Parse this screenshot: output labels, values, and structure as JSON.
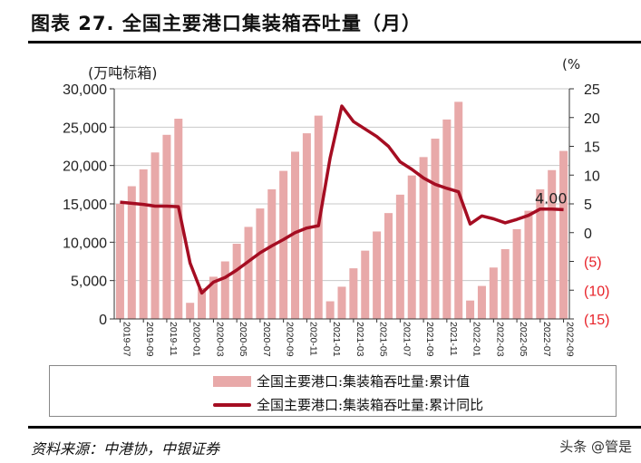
{
  "title": "图表 27. 全国主要港口集装箱吞吐量（月）",
  "source": "资料来源：中港协，中银证券",
  "watermark": "头条 @管是",
  "chart_data": {
    "type": "bar+line",
    "title": "",
    "left_axis_label": "(万吨标箱)",
    "right_axis_label": "(%",
    "left_ylim": [
      0,
      30000
    ],
    "left_ticks": [
      "0",
      "5,000",
      "10,000",
      "15,000",
      "20,000",
      "25,000",
      "30,000"
    ],
    "right_ylim": [
      -15,
      25
    ],
    "right_ticks": [
      "(15)",
      "(10)",
      "(5)",
      "0",
      "5",
      "10",
      "15",
      "20",
      "25"
    ],
    "negative_tick_color": "#e8232a",
    "grid": true,
    "categories": [
      "2019-07",
      "2019-08",
      "2019-09",
      "2019-10",
      "2019-11",
      "2019-12",
      "2020-01",
      "2020-02",
      "2020-03",
      "2020-04",
      "2020-05",
      "2020-06",
      "2020-07",
      "2020-08",
      "2020-09",
      "2020-10",
      "2020-11",
      "2020-12",
      "2021-01",
      "2021-02",
      "2021-03",
      "2021-04",
      "2021-05",
      "2021-06",
      "2021-07",
      "2021-08",
      "2021-09",
      "2021-10",
      "2021-11",
      "2021-12",
      "2022-01",
      "2022-02",
      "2022-03",
      "2022-04",
      "2022-05",
      "2022-06",
      "2022-07",
      "2022-08",
      "2022-09"
    ],
    "shown_x_labels": [
      "2019-07",
      "2019-09",
      "2019-11",
      "2020-01",
      "2020-03",
      "2020-05",
      "2020-07",
      "2020-09",
      "2020-11",
      "2021-01",
      "2021-03",
      "2021-05",
      "2021-07",
      "2021-09",
      "2021-11",
      "2022-01",
      "2022-03",
      "2022-05",
      "2022-07",
      "2022-09"
    ],
    "series": [
      {
        "name": "全国主要港口:集装箱吞吐量:累计值",
        "type": "bar",
        "axis": "left",
        "color": "#e8a9a9",
        "values": [
          15000,
          17300,
          19500,
          21700,
          24000,
          26100,
          2100,
          4000,
          5500,
          7500,
          9800,
          12000,
          14400,
          16900,
          19300,
          21800,
          24200,
          26500,
          2300,
          4200,
          6600,
          8900,
          11400,
          13800,
          16200,
          18700,
          21100,
          23500,
          26000,
          28300,
          2400,
          4300,
          6700,
          9100,
          11700,
          14100,
          16900,
          19400,
          21900
        ]
      },
      {
        "name": "全国主要港口:集装箱吞吐量:累计同比",
        "type": "line",
        "axis": "right",
        "color": "#a50d22",
        "values": [
          5.3,
          5.1,
          4.9,
          4.6,
          4.6,
          4.5,
          -5.3,
          -10.5,
          -8.6,
          -7.8,
          -6.5,
          -5.0,
          -3.5,
          -2.3,
          -1.2,
          0.0,
          0.8,
          1.2,
          13.0,
          22.0,
          19.3,
          18.0,
          16.7,
          15.0,
          12.3,
          11.0,
          9.5,
          8.4,
          7.7,
          7.1,
          1.5,
          2.9,
          2.4,
          1.7,
          2.3,
          3.0,
          4.1,
          4.1,
          4.0
        ]
      }
    ],
    "annotation": "4.00",
    "legend_position": "bottom"
  }
}
